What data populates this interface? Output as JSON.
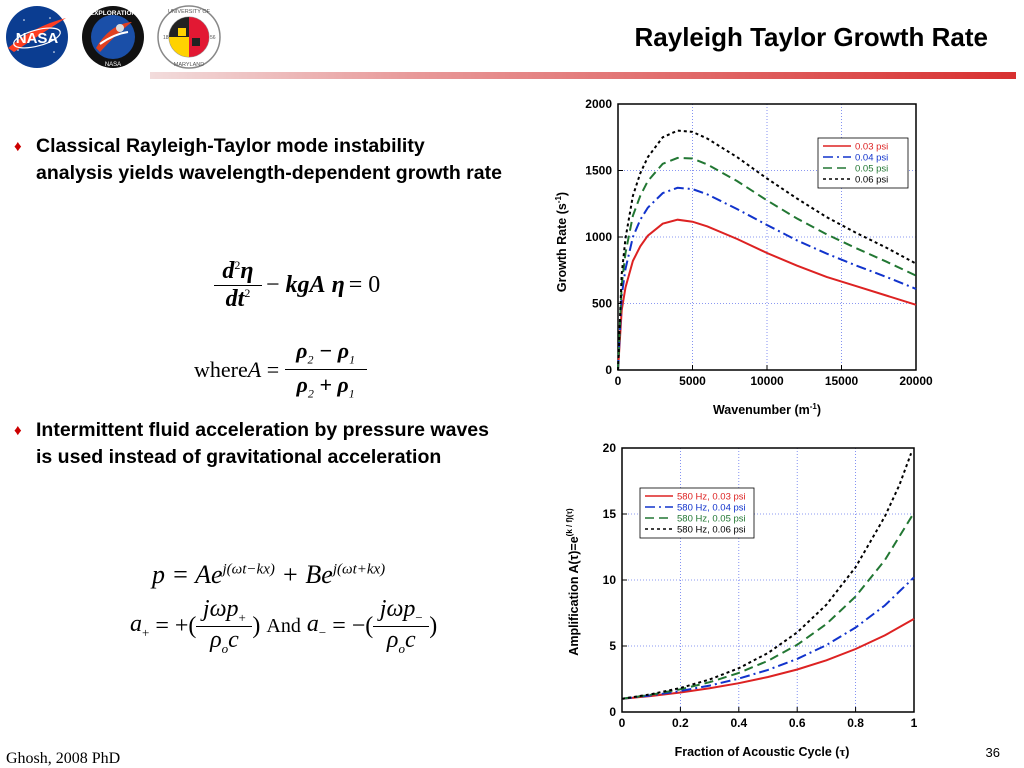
{
  "header": {
    "title": "Rayleigh Taylor Growth Rate",
    "logos": {
      "nasa": "NASA",
      "exploration": "EXPLORATION",
      "exploration_bottom": "NASA",
      "umd_top": "UNIVERSITY OF",
      "umd_bottom": "MARYLAND",
      "umd_year_left": "18",
      "umd_year_right": "56"
    }
  },
  "bullets": [
    "Classical Rayleigh-Taylor mode instability analysis yields wavelength-dependent growth rate",
    "Intermittent fluid acceleration by pressure waves is used instead of gravitational acceleration"
  ],
  "equations": {
    "eq1_rhs": "= 0",
    "eq2_where": "where",
    "and": "And"
  },
  "footer": {
    "left": "Ghosh, 2008 PhD",
    "page": "36"
  },
  "colors": {
    "red": "#dd2222",
    "blue": "#1133cc",
    "green": "#227733",
    "black": "#000000",
    "accent": "#cc0000"
  },
  "chart_data": [
    {
      "type": "line",
      "xlabel": "Wavenumber (m",
      "xlabel_sup": "-1",
      "xlabel_end": ")",
      "ylabel": "Growth Rate (s",
      "ylabel_sup": "-1",
      "ylabel_end": ")",
      "xlim": [
        0,
        20000
      ],
      "ylim": [
        0,
        2000
      ],
      "xticks": [
        0,
        5000,
        10000,
        15000,
        20000
      ],
      "yticks": [
        0,
        500,
        1000,
        1500,
        2000
      ],
      "grid": true,
      "legend_position": "top-right",
      "series": [
        {
          "name": "0.03 psi",
          "color": "#dd2222",
          "dash": "solid",
          "x": [
            0,
            250,
            500,
            1000,
            1500,
            2000,
            3000,
            4000,
            5000,
            6000,
            8000,
            10000,
            12000,
            14000,
            16000,
            18000,
            20000
          ],
          "y": [
            0,
            450,
            620,
            820,
            930,
            1010,
            1100,
            1130,
            1115,
            1080,
            985,
            880,
            785,
            700,
            630,
            560,
            490
          ]
        },
        {
          "name": "0.04 psi",
          "color": "#1133cc",
          "dash": "dashdot",
          "x": [
            0,
            250,
            500,
            1000,
            1500,
            2000,
            3000,
            4000,
            5000,
            6000,
            8000,
            10000,
            12000,
            14000,
            16000,
            18000,
            20000
          ],
          "y": [
            0,
            560,
            760,
            1000,
            1130,
            1220,
            1330,
            1370,
            1360,
            1320,
            1210,
            1090,
            975,
            875,
            785,
            700,
            610
          ]
        },
        {
          "name": "0.05 psi",
          "color": "#227733",
          "dash": "dashed",
          "x": [
            0,
            250,
            500,
            1000,
            1500,
            2000,
            3000,
            4000,
            5000,
            6000,
            8000,
            10000,
            12000,
            14000,
            16000,
            18000,
            20000
          ],
          "y": [
            0,
            640,
            880,
            1160,
            1310,
            1420,
            1550,
            1595,
            1590,
            1545,
            1420,
            1275,
            1140,
            1020,
            915,
            815,
            710
          ]
        },
        {
          "name": "0.06 psi",
          "color": "#000000",
          "dash": "dotted",
          "x": [
            0,
            250,
            500,
            1000,
            1500,
            2000,
            3000,
            4000,
            5000,
            6000,
            8000,
            10000,
            12000,
            14000,
            16000,
            18000,
            20000
          ],
          "y": [
            0,
            720,
            990,
            1310,
            1480,
            1600,
            1750,
            1800,
            1790,
            1740,
            1600,
            1440,
            1290,
            1150,
            1030,
            920,
            800
          ]
        }
      ]
    },
    {
      "type": "line",
      "xlabel": "Fraction of Acoustic Cycle (",
      "xlabel_sym": "τ",
      "xlabel_end": ")",
      "ylabel": "Amplification A(τ)=e",
      "ylabel_sup": "(k / f)(τ)",
      "xlim": [
        0,
        1
      ],
      "ylim": [
        0,
        20
      ],
      "xticks": [
        0,
        0.2,
        0.4,
        0.6,
        0.8,
        1
      ],
      "yticks": [
        0,
        5,
        10,
        15,
        20
      ],
      "grid": true,
      "legend_position": "top-left",
      "series": [
        {
          "name": "580 Hz, 0.03 psi",
          "color": "#dd2222",
          "dash": "solid",
          "x": [
            0,
            0.1,
            0.2,
            0.3,
            0.4,
            0.5,
            0.6,
            0.7,
            0.8,
            0.9,
            1.0
          ],
          "y": [
            1.0,
            1.21,
            1.48,
            1.8,
            2.18,
            2.65,
            3.22,
            3.92,
            4.77,
            5.8,
            7.05
          ]
        },
        {
          "name": "580 Hz, 0.04 psi",
          "color": "#1133cc",
          "dash": "dashdot",
          "x": [
            0,
            0.1,
            0.2,
            0.3,
            0.4,
            0.5,
            0.6,
            0.7,
            0.8,
            0.9,
            1.0
          ],
          "y": [
            1.0,
            1.26,
            1.59,
            2.0,
            2.53,
            3.19,
            4.02,
            5.07,
            6.4,
            8.07,
            10.2
          ]
        },
        {
          "name": "580 Hz, 0.05 psi",
          "color": "#227733",
          "dash": "dashed",
          "x": [
            0,
            0.1,
            0.2,
            0.3,
            0.4,
            0.5,
            0.6,
            0.7,
            0.8,
            0.9,
            1.0
          ],
          "y": [
            1.0,
            1.31,
            1.72,
            2.26,
            2.96,
            3.88,
            5.09,
            6.67,
            8.75,
            11.5,
            15.1
          ]
        },
        {
          "name": "580 Hz, 0.06 psi",
          "color": "#000000",
          "dash": "dotted",
          "x": [
            0,
            0.1,
            0.2,
            0.3,
            0.4,
            0.5,
            0.6,
            0.7,
            0.8,
            0.9,
            0.95,
            0.99
          ],
          "y": [
            1.0,
            1.35,
            1.82,
            2.46,
            3.32,
            4.47,
            6.03,
            8.13,
            10.97,
            14.8,
            17.2,
            19.6
          ]
        }
      ]
    }
  ]
}
